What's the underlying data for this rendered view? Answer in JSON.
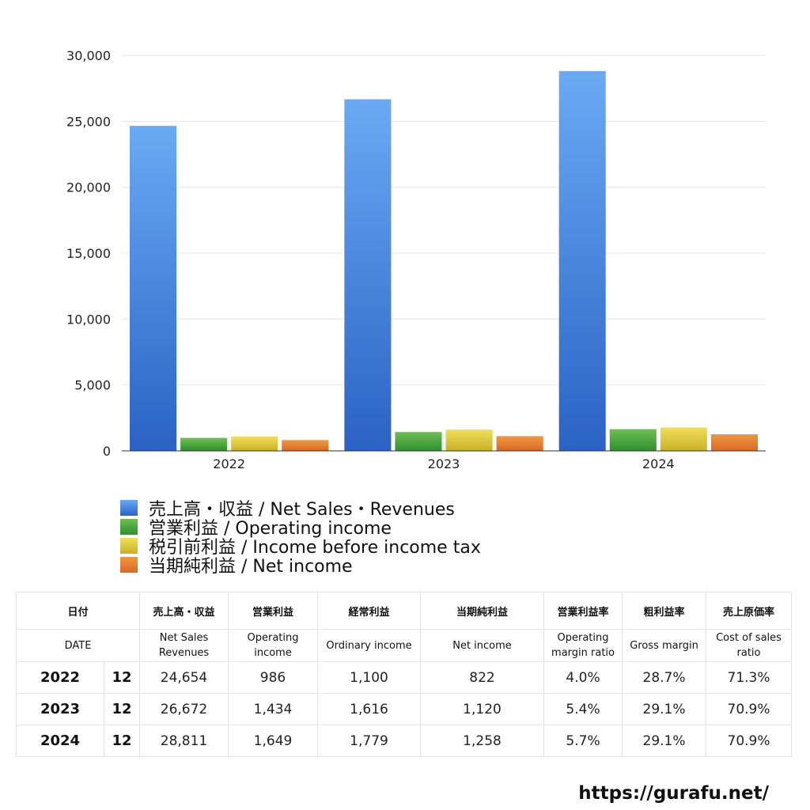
{
  "chart_data": {
    "type": "bar",
    "categories": [
      "2022",
      "2023",
      "2024"
    ],
    "series": [
      {
        "name": "売上高・収益 / Net Sales・Revenues",
        "values": [
          24654,
          26672,
          28811
        ],
        "color_top": "#6aaaf4",
        "color_bottom": "#2b62c4"
      },
      {
        "name": "営業利益 / Operating income",
        "values": [
          986,
          1434,
          1649
        ],
        "color_top": "#6fbf54",
        "color_bottom": "#2f8f2f"
      },
      {
        "name": "税引前利益 / Income before income tax",
        "values": [
          1100,
          1616,
          1779
        ],
        "color_top": "#f1df5a",
        "color_bottom": "#c9b02a"
      },
      {
        "name": "当期純利益 / Net income",
        "values": [
          822,
          1120,
          1258
        ],
        "color_top": "#f0983f",
        "color_bottom": "#d8692a"
      }
    ],
    "y_ticks": [
      "0",
      "5,000",
      "10,000",
      "15,000",
      "20,000",
      "25,000",
      "30,000"
    ],
    "ylim": [
      0,
      30000
    ],
    "grid": true,
    "legend_position": "bottom-left"
  },
  "table": {
    "header_jp": [
      "日付",
      "売上高・収益",
      "営業利益",
      "経常利益",
      "当期純利益",
      "営業利益率",
      "粗利益率",
      "売上原価率"
    ],
    "header_en": [
      "DATE",
      "Net Sales Revenues",
      "Operating income",
      "Ordinary income",
      "Net income",
      "Operating margin ratio",
      "Gross margin",
      "Cost of sales ratio"
    ],
    "rows": [
      {
        "year": "2022",
        "month": "12",
        "cells": [
          "24,654",
          "986",
          "1,100",
          "822",
          "4.0%",
          "28.7%",
          "71.3%"
        ]
      },
      {
        "year": "2023",
        "month": "12",
        "cells": [
          "26,672",
          "1,434",
          "1,616",
          "1,120",
          "5.4%",
          "29.1%",
          "70.9%"
        ]
      },
      {
        "year": "2024",
        "month": "12",
        "cells": [
          "28,811",
          "1,649",
          "1,779",
          "1,258",
          "5.7%",
          "29.1%",
          "70.9%"
        ]
      }
    ]
  },
  "footer": {
    "url": "https://gurafu.net/"
  }
}
